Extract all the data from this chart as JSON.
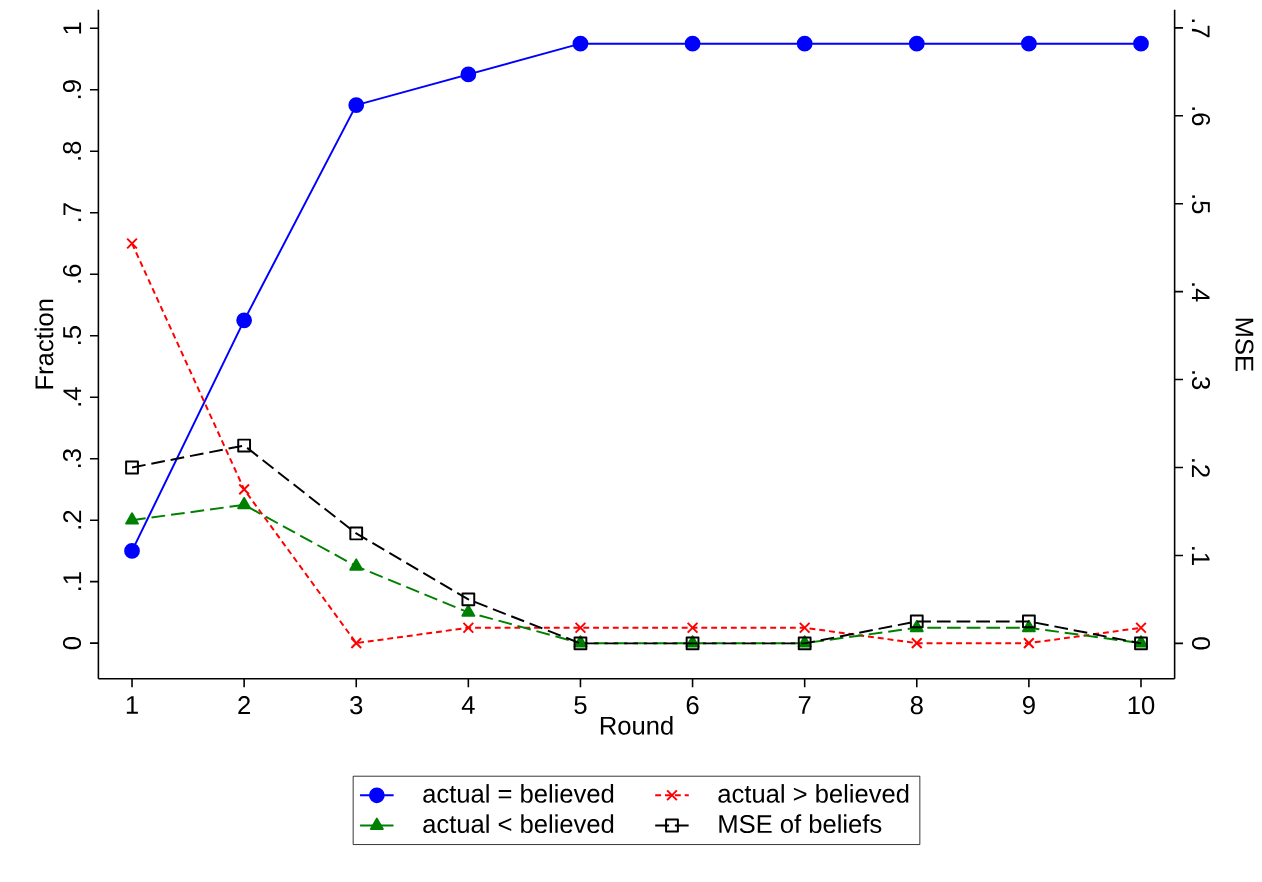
{
  "chart_data": {
    "type": "line",
    "xlabel": "Round",
    "ylabel": "Fraction",
    "y2label": "MSE",
    "x": [
      1,
      2,
      3,
      4,
      5,
      6,
      7,
      8,
      9,
      10
    ],
    "series": [
      {
        "name": "actual = believed",
        "color": "#0000ff",
        "marker": "circle",
        "line_style": "solid",
        "values": [
          0.15,
          0.525,
          0.875,
          0.925,
          0.975,
          0.975,
          0.975,
          0.975,
          0.975,
          0.975
        ]
      },
      {
        "name": "actual > believed",
        "color": "#ff0000",
        "marker": "cross",
        "line_style": "dotted",
        "values": [
          0.65,
          0.25,
          0,
          0.025,
          0.025,
          0.025,
          0.025,
          0,
          0,
          0.025
        ]
      },
      {
        "name": "actual < believed",
        "color": "#008000",
        "marker": "triangle",
        "line_style": "dashed",
        "values": [
          0.2,
          0.225,
          0.125,
          0.05,
          0,
          0,
          0,
          0.025,
          0.025,
          0
        ]
      },
      {
        "name": "MSE of beliefs",
        "color": "#000000",
        "marker": "square",
        "line_style": "dashed",
        "axis": "y2",
        "values": [
          0.2,
          0.225,
          0.125,
          0.05,
          0,
          0,
          0,
          0.025,
          0.025,
          0
        ]
      }
    ],
    "xlim": [
      0.7,
      10.3
    ],
    "xticks": [
      1,
      2,
      3,
      4,
      5,
      6,
      7,
      8,
      9,
      10
    ],
    "ylim": [
      -0.058,
      1.03
    ],
    "yticks": [
      0,
      {
        "value": 0.1,
        "label": ".1"
      },
      {
        "value": 0.2,
        "label": ".2"
      },
      {
        "value": 0.3,
        "label": ".3"
      },
      {
        "value": 0.4,
        "label": ".4"
      },
      {
        "value": 0.5,
        "label": ".5"
      },
      {
        "value": 0.6,
        "label": ".6"
      },
      {
        "value": 0.7,
        "label": ".7"
      },
      {
        "value": 0.8,
        "label": ".8"
      },
      {
        "value": 0.9,
        "label": ".9"
      },
      1
    ],
    "y2lim": [
      -0.0403,
      0.7205
    ],
    "y2ticks": [
      0,
      {
        "value": 0.1,
        "label": ".1"
      },
      {
        "value": 0.2,
        "label": ".2"
      },
      {
        "value": 0.3,
        "label": ".3"
      },
      {
        "value": 0.4,
        "label": ".4"
      },
      {
        "value": 0.5,
        "label": ".5"
      },
      {
        "value": 0.6,
        "label": ".6"
      },
      {
        "value": 0.7,
        "label": ".7"
      }
    ],
    "grid": false,
    "legend": "bottom"
  }
}
